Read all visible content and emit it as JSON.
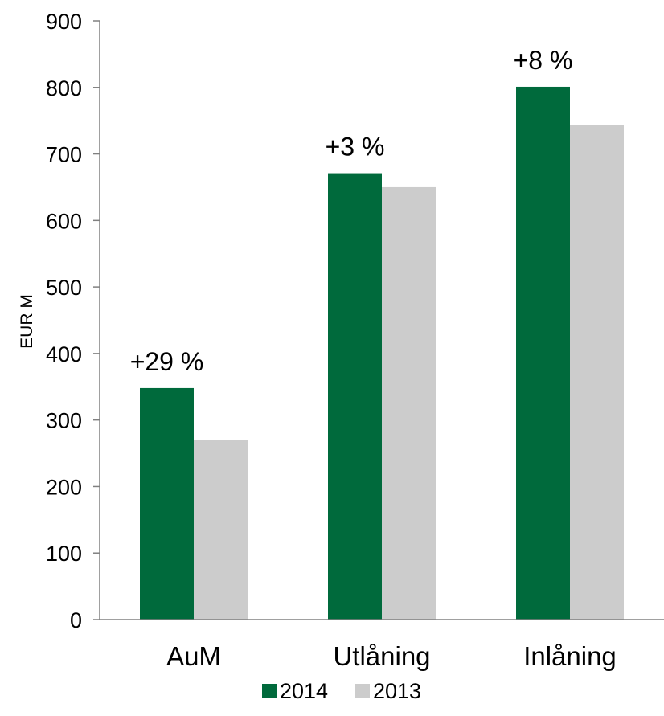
{
  "chart_data": {
    "type": "bar",
    "categories": [
      "AuM",
      "Utlåning",
      "Inlåning"
    ],
    "series": [
      {
        "name": "2014",
        "values": [
          348,
          671,
          801
        ],
        "color": "#006A3C"
      },
      {
        "name": "2013",
        "values": [
          270,
          650,
          744
        ],
        "color": "#CCCCCC"
      }
    ],
    "annotations": [
      "+29 %",
      "+3 %",
      "+8 %"
    ],
    "ylabel": "EUR M",
    "ylim": [
      0,
      900
    ],
    "yticks": [
      0,
      100,
      200,
      300,
      400,
      500,
      600,
      700,
      800,
      900
    ],
    "grid": false,
    "legend": "bottom-center"
  }
}
